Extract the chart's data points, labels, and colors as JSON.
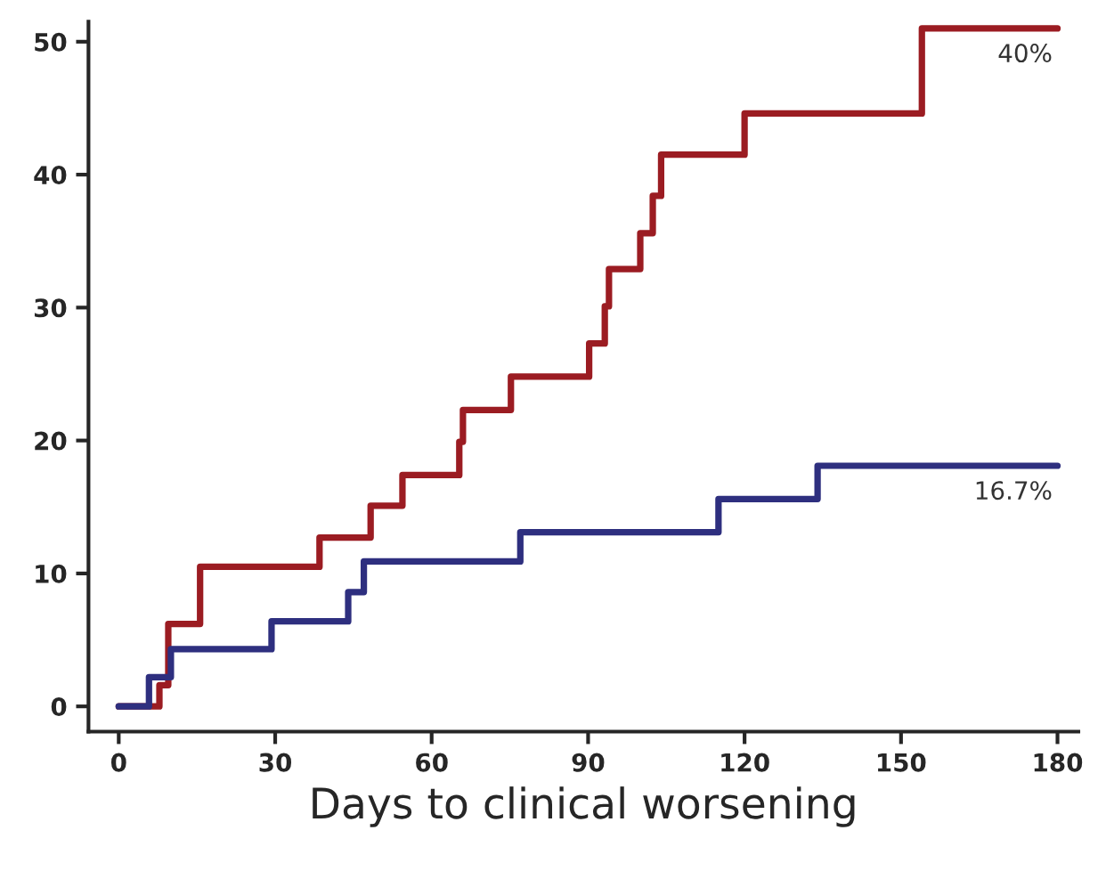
{
  "chart_data": {
    "type": "step",
    "xlabel": "Days to clinical worsening",
    "series": [
      {
        "color": "#9b1c22",
        "x": [
          0,
          7.8,
          9.5,
          15.6,
          38.5,
          48.3,
          54.4,
          65.3,
          66,
          75.2,
          90.2,
          93.2,
          94,
          100,
          102.4,
          104,
          120,
          154,
          180
        ],
        "values": [
          0,
          1.6,
          6.2,
          10.5,
          12.7,
          15.1,
          17.4,
          19.9,
          22.3,
          24.8,
          27.3,
          30.1,
          32.9,
          35.6,
          38.4,
          41.5,
          44.6,
          51.0,
          51.0
        ]
      },
      {
        "color": "#2e2f7f",
        "x": [
          0,
          5.8,
          10,
          29.3,
          44,
          47,
          77,
          115,
          134,
          180
        ],
        "values": [
          0,
          2.2,
          4.3,
          6.4,
          8.6,
          10.9,
          13.1,
          15.6,
          18.1,
          18.1
        ]
      }
    ],
    "annotations": [
      {
        "text": "40%",
        "x": 180,
        "y": 51.0
      },
      {
        "text": "16.7%",
        "x": 180,
        "y": 18.1
      }
    ],
    "xlim": [
      -5.8,
      184
    ],
    "ylim": [
      -1.9,
      51.5
    ],
    "xticks": [
      0,
      30,
      60,
      90,
      120,
      150,
      180
    ],
    "yticks": [
      0,
      10,
      20,
      30,
      40,
      50
    ],
    "grid": false,
    "legend": false
  }
}
